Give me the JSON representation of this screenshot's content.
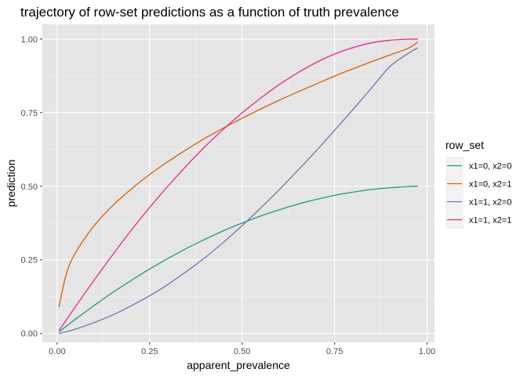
{
  "chart_data": {
    "type": "line",
    "title": "trajectory of row-set predictions as a function of truth prevalence",
    "xlabel": "apparent_prevalence",
    "ylabel": "prediction",
    "xlim": [
      -0.04,
      1.02
    ],
    "ylim": [
      -0.03,
      1.05
    ],
    "x_ticks": [
      0.0,
      0.25,
      0.5,
      0.75,
      1.0
    ],
    "x_tick_labels": [
      "0.00",
      "0.25",
      "0.50",
      "0.75",
      "1.00"
    ],
    "y_ticks": [
      0.0,
      0.25,
      0.5,
      0.75,
      1.0
    ],
    "y_tick_labels": [
      "0.00",
      "0.25",
      "0.50",
      "0.75",
      "1.00"
    ],
    "grid": true,
    "background": "#e5e5e5",
    "legend": {
      "title": "row_set",
      "position": "right"
    },
    "x": [
      0.005,
      0.025,
      0.05,
      0.1,
      0.15,
      0.2,
      0.25,
      0.3,
      0.35,
      0.4,
      0.45,
      0.5,
      0.55,
      0.6,
      0.65,
      0.7,
      0.75,
      0.8,
      0.85,
      0.9,
      0.95,
      0.975
    ],
    "series": [
      {
        "name": "x1=0, x2=0",
        "color": "#1b9e77",
        "values": [
          0.005,
          0.025,
          0.049,
          0.095,
          0.139,
          0.18,
          0.219,
          0.255,
          0.289,
          0.32,
          0.349,
          0.375,
          0.399,
          0.42,
          0.439,
          0.455,
          0.469,
          0.48,
          0.489,
          0.495,
          0.499,
          0.5
        ]
      },
      {
        "name": "x1=0, x2=1",
        "color": "#d95f02",
        "values": [
          0.09,
          0.203,
          0.275,
          0.366,
          0.434,
          0.49,
          0.54,
          0.584,
          0.625,
          0.663,
          0.698,
          0.731,
          0.762,
          0.792,
          0.82,
          0.847,
          0.874,
          0.899,
          0.923,
          0.946,
          0.969,
          0.99
        ]
      },
      {
        "name": "x1=1, x2=0",
        "color": "#7570b3",
        "values": [
          0.0,
          0.006,
          0.015,
          0.037,
          0.063,
          0.094,
          0.128,
          0.167,
          0.211,
          0.258,
          0.31,
          0.366,
          0.426,
          0.488,
          0.553,
          0.62,
          0.69,
          0.761,
          0.834,
          0.907,
          0.952,
          0.97
        ]
      },
      {
        "name": "x1=1, x2=1",
        "color": "#e7298a",
        "values": [
          0.01,
          0.046,
          0.092,
          0.181,
          0.267,
          0.35,
          0.428,
          0.501,
          0.57,
          0.635,
          0.694,
          0.749,
          0.799,
          0.845,
          0.885,
          0.92,
          0.949,
          0.971,
          0.987,
          0.996,
          0.9995,
          1.0
        ]
      }
    ]
  }
}
